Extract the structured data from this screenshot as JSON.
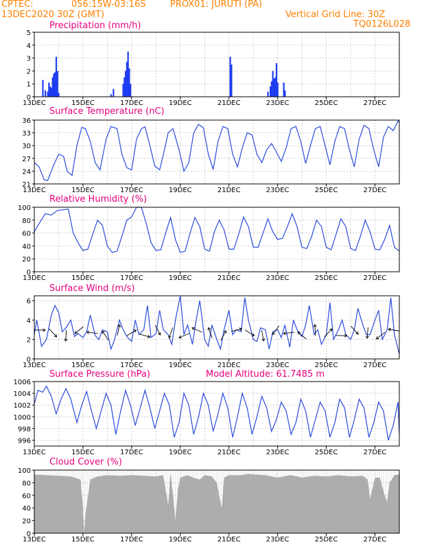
{
  "header": {
    "org": "CPTEC:",
    "coords": "056:15W-03:16S",
    "location": "PROX01: JURUTI (PA)",
    "date": "13DEC2020 30Z (GMT)",
    "grid_line": "Vertical Grid Line: 30Z",
    "code": "TQ0126L028"
  },
  "colors": {
    "title": "#e6007e",
    "header": "#ff7f00",
    "line": "#2a4bdc",
    "bar": "#1f3df0",
    "cloud": "#aaaaaa"
  },
  "chart_data": [
    {
      "type": "bar",
      "title": "Precipitation (mm/h)",
      "ylim": [
        0,
        5
      ],
      "yticks": [
        "0",
        "1",
        "2",
        "3",
        "4",
        "5"
      ],
      "xticks": [
        "13DEC",
        "15DEC",
        "17DEC",
        "19DEC",
        "21DEC",
        "23DEC",
        "25DEC",
        "27DEC"
      ],
      "x_range": [
        13,
        28
      ],
      "x_tick_values": [
        13,
        15,
        17,
        19,
        21,
        23,
        25,
        27
      ],
      "x": [
        13.35,
        13.45,
        13.55,
        13.6,
        13.65,
        13.7,
        13.75,
        13.8,
        13.85,
        13.9,
        13.95,
        14.0,
        16.15,
        16.25,
        16.65,
        16.7,
        16.75,
        16.8,
        16.85,
        16.9,
        16.95,
        21.05,
        21.1,
        22.6,
        22.7,
        22.75,
        22.8,
        22.85,
        22.9,
        22.95,
        23.0,
        23.25,
        23.3
      ],
      "values": [
        1.3,
        0.5,
        0.4,
        1.1,
        0.8,
        0.7,
        1.5,
        1.8,
        1.9,
        3.1,
        2.0,
        0.3,
        0.2,
        0.6,
        1.0,
        1.5,
        2.0,
        2.7,
        3.5,
        2.2,
        1.0,
        3.1,
        2.5,
        0.4,
        0.8,
        1.2,
        2.0,
        1.4,
        1.5,
        2.6,
        1.1,
        1.1,
        0.5
      ]
    },
    {
      "type": "line",
      "title": "Surface Temperature (nC)",
      "ylim": [
        21,
        36
      ],
      "yticks": [
        "21",
        "24",
        "27",
        "30",
        "33",
        "36"
      ],
      "xticks": [
        "13DEC",
        "15DEC",
        "17DEC",
        "19DEC",
        "21DEC",
        "23DEC",
        "25DEC",
        "27DEC"
      ],
      "x_range": [
        13,
        28
      ],
      "x_tick_values": [
        13,
        15,
        17,
        19,
        21,
        23,
        25,
        27
      ],
      "x": [
        13.0,
        13.2,
        13.4,
        13.55,
        13.8,
        14.0,
        14.2,
        14.35,
        14.55,
        14.75,
        14.95,
        15.1,
        15.3,
        15.5,
        15.7,
        15.95,
        16.15,
        16.4,
        16.6,
        16.8,
        17.0,
        17.2,
        17.4,
        17.55,
        17.75,
        17.95,
        18.15,
        18.35,
        18.5,
        18.7,
        18.95,
        19.15,
        19.35,
        19.55,
        19.75,
        19.95,
        20.15,
        20.35,
        20.55,
        20.75,
        20.95,
        21.15,
        21.35,
        21.55,
        21.75,
        21.95,
        22.15,
        22.35,
        22.55,
        22.75,
        22.95,
        23.15,
        23.35,
        23.55,
        23.75,
        23.95,
        24.15,
        24.35,
        24.55,
        24.75,
        24.95,
        25.15,
        25.35,
        25.55,
        25.75,
        25.95,
        26.15,
        26.35,
        26.55,
        26.75,
        26.95,
        27.15,
        27.35,
        27.55,
        27.75,
        27.95,
        28.0
      ],
      "values": [
        26.0,
        25.0,
        22.0,
        21.8,
        25.5,
        28.0,
        27.5,
        24.0,
        23.0,
        30.0,
        34.3,
        34.0,
        31.0,
        26.0,
        24.3,
        31.5,
        34.5,
        34.0,
        28.0,
        24.8,
        24.3,
        31.5,
        34.0,
        34.4,
        30.0,
        25.2,
        24.3,
        29.0,
        33.0,
        34.0,
        29.0,
        24.0,
        26.0,
        33.0,
        35.0,
        34.2,
        28.0,
        24.4,
        31.0,
        34.5,
        34.0,
        28.0,
        25.0,
        29.5,
        33.0,
        32.5,
        28.0,
        26.0,
        29.0,
        30.5,
        28.5,
        26.3,
        29.5,
        34.0,
        34.5,
        31.0,
        25.8,
        30.0,
        34.0,
        34.5,
        30.0,
        25.5,
        31.0,
        34.5,
        34.0,
        29.0,
        25.0,
        31.5,
        34.8,
        34.0,
        29.0,
        25.0,
        32.0,
        34.5,
        33.5,
        35.8,
        35.5
      ]
    },
    {
      "type": "line",
      "title": "Relative Humidity (%)",
      "ylim": [
        0,
        100
      ],
      "yticks": [
        "0",
        "20",
        "40",
        "60",
        "80",
        "100"
      ],
      "xticks": [
        "13DEC",
        "15DEC",
        "17DEC",
        "19DEC",
        "21DEC",
        "23DEC",
        "25DEC",
        "27DEC"
      ],
      "x_range": [
        13,
        28
      ],
      "x_tick_values": [
        13,
        15,
        17,
        19,
        21,
        23,
        25,
        27
      ],
      "x": [
        13.0,
        13.2,
        13.45,
        13.7,
        13.95,
        14.15,
        14.4,
        14.6,
        14.8,
        15.0,
        15.2,
        15.4,
        15.6,
        15.8,
        16.0,
        16.2,
        16.4,
        16.6,
        16.8,
        17.0,
        17.2,
        17.4,
        17.6,
        17.8,
        18.0,
        18.2,
        18.4,
        18.6,
        18.8,
        19.0,
        19.2,
        19.4,
        19.6,
        19.8,
        20.0,
        20.2,
        20.4,
        20.6,
        20.8,
        21.0,
        21.2,
        21.4,
        21.6,
        21.8,
        22.0,
        22.2,
        22.4,
        22.6,
        22.8,
        23.0,
        23.2,
        23.4,
        23.6,
        23.8,
        24.0,
        24.2,
        24.4,
        24.6,
        24.8,
        25.0,
        25.2,
        25.4,
        25.6,
        25.8,
        26.0,
        26.2,
        26.4,
        26.6,
        26.8,
        27.0,
        27.2,
        27.4,
        27.6,
        27.8,
        28.0
      ],
      "values": [
        62,
        75,
        90,
        88,
        95,
        96,
        97,
        60,
        45,
        33,
        35,
        58,
        80,
        72,
        40,
        30,
        32,
        55,
        80,
        85,
        100,
        100,
        75,
        45,
        33,
        34,
        60,
        84,
        50,
        30,
        32,
        60,
        84,
        70,
        35,
        32,
        62,
        80,
        65,
        35,
        35,
        58,
        85,
        70,
        38,
        38,
        60,
        82,
        62,
        50,
        52,
        70,
        90,
        70,
        38,
        36,
        55,
        80,
        70,
        38,
        34,
        58,
        82,
        70,
        36,
        33,
        55,
        80,
        62,
        35,
        34,
        50,
        72,
        38,
        32
      ]
    },
    {
      "type": "line",
      "title": "Surface Wind (m/s)",
      "ylim": [
        0,
        6.5
      ],
      "yticks": [
        "0",
        "2",
        "4",
        "6"
      ],
      "xticks": [
        "13DEC",
        "15DEC",
        "17DEC",
        "19DEC",
        "21DEC",
        "23DEC",
        "25DEC",
        "27DEC"
      ],
      "x_range": [
        13,
        28
      ],
      "x_tick_values": [
        13,
        15,
        17,
        19,
        21,
        23,
        25,
        27
      ],
      "x": [
        13.0,
        13.1,
        13.3,
        13.5,
        13.7,
        13.85,
        14.0,
        14.15,
        14.3,
        14.5,
        14.65,
        14.8,
        15.0,
        15.15,
        15.3,
        15.5,
        15.65,
        15.8,
        16.0,
        16.15,
        16.3,
        16.5,
        16.65,
        16.8,
        17.0,
        17.15,
        17.3,
        17.5,
        17.65,
        17.8,
        18.0,
        18.15,
        18.3,
        18.5,
        18.65,
        18.8,
        19.0,
        19.15,
        19.3,
        19.5,
        19.65,
        19.8,
        20.0,
        20.15,
        20.3,
        20.5,
        20.65,
        20.8,
        21.0,
        21.15,
        21.3,
        21.5,
        21.65,
        21.8,
        22.0,
        22.15,
        22.3,
        22.5,
        22.65,
        22.8,
        23.0,
        23.15,
        23.3,
        23.5,
        23.65,
        23.8,
        24.0,
        24.15,
        24.3,
        24.5,
        24.65,
        24.8,
        25.0,
        25.15,
        25.3,
        25.5,
        25.65,
        25.8,
        26.0,
        26.15,
        26.3,
        26.5,
        26.65,
        26.8,
        27.0,
        27.15,
        27.3,
        27.5,
        27.65,
        27.8,
        28.0
      ],
      "values": [
        2.5,
        4.0,
        1.3,
        2.0,
        4.5,
        5.5,
        4.8,
        2.8,
        3.2,
        4.0,
        2.3,
        2.6,
        2.2,
        2.8,
        4.5,
        2.4,
        2.0,
        3.0,
        2.8,
        1.0,
        2.0,
        4.0,
        3.0,
        2.3,
        1.8,
        4.0,
        2.5,
        3.0,
        5.5,
        2.2,
        2.6,
        5.0,
        3.0,
        2.5,
        1.5,
        4.0,
        6.5,
        2.5,
        3.5,
        1.5,
        4.0,
        6.0,
        2.0,
        1.3,
        3.5,
        2.0,
        1.0,
        3.0,
        5.0,
        2.5,
        3.0,
        2.8,
        6.3,
        4.0,
        2.0,
        1.8,
        3.2,
        3.0,
        1.0,
        2.8,
        3.0,
        2.2,
        3.5,
        1.2,
        4.0,
        3.0,
        2.3,
        3.5,
        5.5,
        2.5,
        3.0,
        1.5,
        2.5,
        5.8,
        2.0,
        3.0,
        4.0,
        2.5,
        2.0,
        3.0,
        5.2,
        3.5,
        2.5,
        2.5,
        4.0,
        5.0,
        2.0,
        3.0,
        6.3,
        2.5,
        0.5
      ]
    },
    {
      "type": "line",
      "title": "Surface Pressure (hPa)",
      "annotation": "Model Altitude: 61.7485 m",
      "ylim": [
        995,
        1006
      ],
      "yticks": [
        "996",
        "998",
        "1000",
        "1002",
        "1004",
        "1006"
      ],
      "xticks": [
        "13DEC",
        "15DEC",
        "17DEC",
        "19DEC",
        "21DEC",
        "23DEC",
        "25DEC",
        "27DEC"
      ],
      "x_range": [
        13,
        28
      ],
      "x_tick_values": [
        13,
        15,
        17,
        19,
        21,
        23,
        25,
        27
      ],
      "x": [
        13.0,
        13.15,
        13.35,
        13.5,
        13.7,
        13.9,
        14.1,
        14.3,
        14.5,
        14.75,
        14.95,
        15.15,
        15.35,
        15.55,
        15.75,
        15.95,
        16.15,
        16.35,
        16.55,
        16.75,
        16.95,
        17.15,
        17.35,
        17.55,
        17.75,
        17.95,
        18.15,
        18.35,
        18.55,
        18.75,
        18.95,
        19.15,
        19.35,
        19.55,
        19.75,
        19.95,
        20.15,
        20.35,
        20.55,
        20.75,
        20.95,
        21.15,
        21.35,
        21.55,
        21.75,
        21.95,
        22.15,
        22.35,
        22.55,
        22.75,
        22.95,
        23.15,
        23.35,
        23.55,
        23.75,
        23.95,
        24.15,
        24.35,
        24.55,
        24.75,
        24.95,
        25.15,
        25.35,
        25.55,
        25.75,
        25.95,
        26.15,
        26.35,
        26.55,
        26.75,
        26.95,
        27.15,
        27.35,
        27.55,
        27.75,
        27.95,
        28.0
      ],
      "values": [
        1002.2,
        1004.5,
        1004.2,
        1005.2,
        1003.5,
        1000.5,
        1003.0,
        1004.8,
        1003.0,
        999.0,
        1002.0,
        1004.3,
        1001.0,
        998.0,
        1001.0,
        1004.0,
        1002.0,
        997.0,
        1001.0,
        1004.5,
        1002.0,
        998.5,
        1001.5,
        1004.5,
        1001.5,
        998.0,
        1001.0,
        1004.0,
        1002.0,
        996.5,
        999.0,
        1004.0,
        1002.0,
        997.0,
        1000.0,
        1004.0,
        1002.0,
        997.5,
        1000.5,
        1004.0,
        1001.5,
        996.5,
        1000.0,
        1004.0,
        1001.5,
        997.0,
        1000.0,
        1003.5,
        1001.5,
        997.5,
        999.5,
        1002.5,
        1001.0,
        997.0,
        999.0,
        1003.0,
        1001.0,
        996.5,
        999.5,
        1002.5,
        1001.0,
        996.5,
        999.0,
        1003.0,
        1001.5,
        996.5,
        999.5,
        1003.0,
        1001.5,
        996.5,
        999.0,
        1002.5,
        1001.0,
        996.0,
        998.5,
        1002.5,
        997.0
      ]
    },
    {
      "type": "area",
      "title": "Cloud Cover (%)",
      "ylim": [
        0,
        100
      ],
      "yticks": [
        "0",
        "20",
        "40",
        "60",
        "80",
        "100"
      ],
      "xticks": [
        "13DEC",
        "15DEC",
        "17DEC",
        "19DEC",
        "21DEC",
        "23DEC",
        "25DEC",
        "27DEC"
      ],
      "x_range": [
        13,
        28
      ],
      "x_tick_values": [
        13,
        15,
        17,
        19,
        21,
        23,
        25,
        27
      ],
      "x": [
        13.0,
        13.5,
        14.0,
        14.5,
        14.9,
        15.0,
        15.05,
        15.1,
        15.3,
        15.6,
        16.0,
        16.5,
        17.0,
        17.5,
        18.0,
        18.3,
        18.5,
        18.6,
        18.7,
        18.8,
        18.9,
        19.0,
        19.3,
        19.6,
        19.8,
        20.0,
        20.3,
        20.5,
        20.7,
        20.8,
        21.0,
        21.5,
        21.8,
        22.0,
        22.5,
        23.0,
        23.5,
        23.8,
        24.0,
        24.5,
        25.0,
        25.5,
        26.0,
        26.5,
        26.7,
        26.8,
        27.0,
        27.2,
        27.4,
        27.5,
        27.6,
        27.8,
        28.0
      ],
      "values": [
        93,
        92,
        91,
        90,
        85,
        40,
        3,
        30,
        85,
        90,
        92,
        91,
        92,
        91,
        90,
        92,
        45,
        95,
        60,
        20,
        70,
        88,
        92,
        87,
        85,
        92,
        90,
        80,
        40,
        88,
        92,
        92,
        94,
        93,
        92,
        88,
        92,
        90,
        88,
        91,
        90,
        92,
        90,
        91,
        85,
        55,
        88,
        88,
        60,
        50,
        80,
        92,
        93
      ]
    }
  ]
}
